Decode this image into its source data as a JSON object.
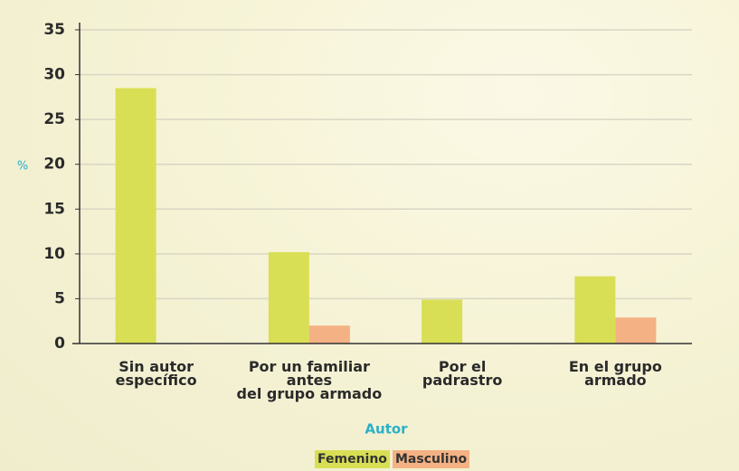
{
  "chart_data": {
    "type": "bar",
    "categories": [
      "Sin autor\nespecífico",
      "Por un familiar\nantes\ndel grupo armado",
      "Por el\npadrastro",
      "En el grupo\narmado"
    ],
    "series": [
      {
        "name": "Femenino",
        "color": "#d8df55",
        "values": [
          28.5,
          10.2,
          4.9,
          7.5
        ]
      },
      {
        "name": "Masculino",
        "color": "#f4b183",
        "values": [
          0,
          2,
          0,
          2.9
        ]
      }
    ],
    "ylabel": "%",
    "xlabel": "Autor",
    "ylim": [
      0,
      35
    ],
    "yticks": [
      0,
      5,
      10,
      15,
      20,
      25,
      30,
      35
    ],
    "grid": true,
    "legend": "bottom"
  }
}
